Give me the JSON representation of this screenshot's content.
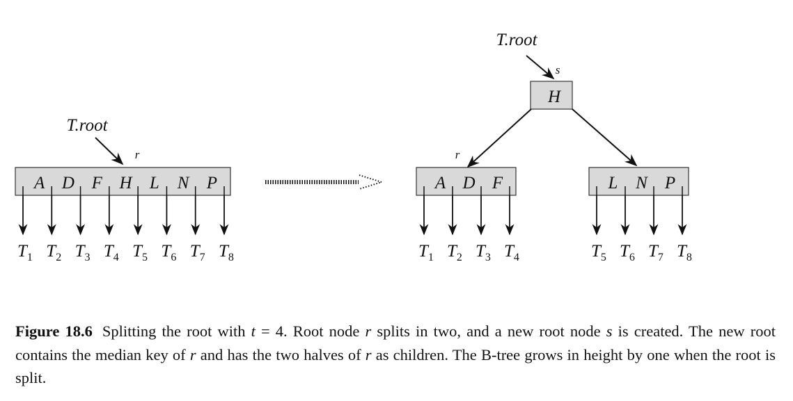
{
  "left": {
    "root_label": "T.root",
    "node_label": "r",
    "keys": [
      "A",
      "D",
      "F",
      "H",
      "L",
      "N",
      "P"
    ],
    "subtrees": [
      {
        "name": "T",
        "sub": "1"
      },
      {
        "name": "T",
        "sub": "2"
      },
      {
        "name": "T",
        "sub": "3"
      },
      {
        "name": "T",
        "sub": "4"
      },
      {
        "name": "T",
        "sub": "5"
      },
      {
        "name": "T",
        "sub": "6"
      },
      {
        "name": "T",
        "sub": "7"
      },
      {
        "name": "T",
        "sub": "8"
      }
    ]
  },
  "right": {
    "root_label": "T.root",
    "root_node_label": "s",
    "root_keys": [
      "H"
    ],
    "left_child": {
      "node_label": "r",
      "keys": [
        "A",
        "D",
        "F"
      ],
      "subtrees": [
        {
          "name": "T",
          "sub": "1"
        },
        {
          "name": "T",
          "sub": "2"
        },
        {
          "name": "T",
          "sub": "3"
        },
        {
          "name": "T",
          "sub": "4"
        }
      ]
    },
    "right_child": {
      "keys": [
        "L",
        "N",
        "P"
      ],
      "subtrees": [
        {
          "name": "T",
          "sub": "5"
        },
        {
          "name": "T",
          "sub": "6"
        },
        {
          "name": "T",
          "sub": "7"
        },
        {
          "name": "T",
          "sub": "8"
        }
      ]
    }
  },
  "caption": {
    "label": "Figure 18.6",
    "parts": [
      "Splitting the root with ",
      "t",
      " = 4. Root node ",
      "r",
      " splits in two, and a new root node ",
      "s",
      " is created. The new root contains the median key of ",
      "r",
      " and has the two halves of ",
      "r",
      " as children. The B-tree grows in height by one when the root is split."
    ]
  }
}
